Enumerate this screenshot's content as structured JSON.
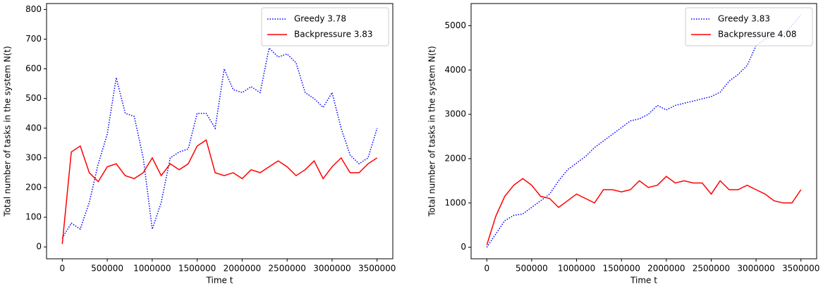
{
  "chart_data": [
    {
      "type": "line",
      "xlabel": "Time t",
      "ylabel": "Total number of tasks in the system N(t)",
      "x": [
        0,
        100000,
        200000,
        300000,
        400000,
        500000,
        600000,
        700000,
        800000,
        900000,
        1000000,
        1100000,
        1200000,
        1300000,
        1400000,
        1500000,
        1600000,
        1700000,
        1800000,
        1900000,
        2000000,
        2100000,
        2200000,
        2300000,
        2400000,
        2500000,
        2600000,
        2700000,
        2800000,
        2900000,
        3000000,
        3100000,
        3200000,
        3300000,
        3400000,
        3500000
      ],
      "series": [
        {
          "name": "Greedy 3.78",
          "color": "#0000ff",
          "linestyle": "dotted",
          "values": [
            30,
            80,
            60,
            150,
            280,
            380,
            570,
            450,
            440,
            300,
            60,
            150,
            300,
            320,
            330,
            450,
            450,
            400,
            600,
            530,
            520,
            540,
            520,
            670,
            640,
            650,
            620,
            520,
            500,
            470,
            520,
            400,
            310,
            280,
            300,
            400
          ]
        },
        {
          "name": "Backpressure 3.83",
          "color": "#ff0000",
          "linestyle": "solid",
          "values": [
            10,
            320,
            340,
            250,
            220,
            270,
            280,
            240,
            230,
            250,
            300,
            240,
            280,
            260,
            280,
            340,
            360,
            250,
            240,
            250,
            230,
            260,
            250,
            270,
            290,
            270,
            240,
            260,
            290,
            230,
            270,
            300,
            250,
            250,
            280,
            300
          ]
        }
      ],
      "xlim": [
        -175000,
        3675000
      ],
      "xticks": [
        0,
        500000,
        1000000,
        1500000,
        2000000,
        2500000,
        3000000,
        3500000
      ],
      "ylim": [
        -40,
        820
      ],
      "yticks": [
        0,
        100,
        200,
        300,
        400,
        500,
        600,
        700,
        800
      ],
      "legend": "upper right"
    },
    {
      "type": "line",
      "xlabel": "Time t",
      "ylabel": "Total number of tasks in the system N(t)",
      "x": [
        0,
        100000,
        200000,
        300000,
        400000,
        500000,
        600000,
        700000,
        800000,
        900000,
        1000000,
        1100000,
        1200000,
        1300000,
        1400000,
        1500000,
        1600000,
        1700000,
        1800000,
        1900000,
        2000000,
        2100000,
        2200000,
        2300000,
        2400000,
        2500000,
        2600000,
        2700000,
        2800000,
        2900000,
        3000000,
        3100000,
        3200000,
        3300000,
        3400000,
        3500000
      ],
      "series": [
        {
          "name": "Greedy 3.83",
          "color": "#0000ff",
          "linestyle": "dotted",
          "values": [
            0,
            300,
            600,
            720,
            750,
            900,
            1050,
            1200,
            1500,
            1750,
            1900,
            2050,
            2250,
            2400,
            2550,
            2700,
            2850,
            2900,
            3000,
            3200,
            3100,
            3200,
            3250,
            3300,
            3350,
            3400,
            3500,
            3750,
            3900,
            4100,
            4550,
            4700,
            4750,
            4800,
            5000,
            5250
          ]
        },
        {
          "name": "Backpressure 4.08",
          "color": "#ff0000",
          "linestyle": "solid",
          "values": [
            50,
            700,
            1150,
            1400,
            1550,
            1400,
            1150,
            1100,
            900,
            1050,
            1200,
            1100,
            1000,
            1300,
            1300,
            1250,
            1300,
            1500,
            1350,
            1400,
            1600,
            1450,
            1500,
            1450,
            1450,
            1200,
            1500,
            1300,
            1300,
            1400,
            1300,
            1200,
            1050,
            1000,
            1000,
            1300
          ]
        }
      ],
      "xlim": [
        -175000,
        3675000
      ],
      "xticks": [
        0,
        500000,
        1000000,
        1500000,
        2000000,
        2500000,
        3000000,
        3500000
      ],
      "ylim": [
        -260,
        5500
      ],
      "yticks": [
        0,
        1000,
        2000,
        3000,
        4000,
        5000
      ],
      "legend": "upper right"
    }
  ]
}
